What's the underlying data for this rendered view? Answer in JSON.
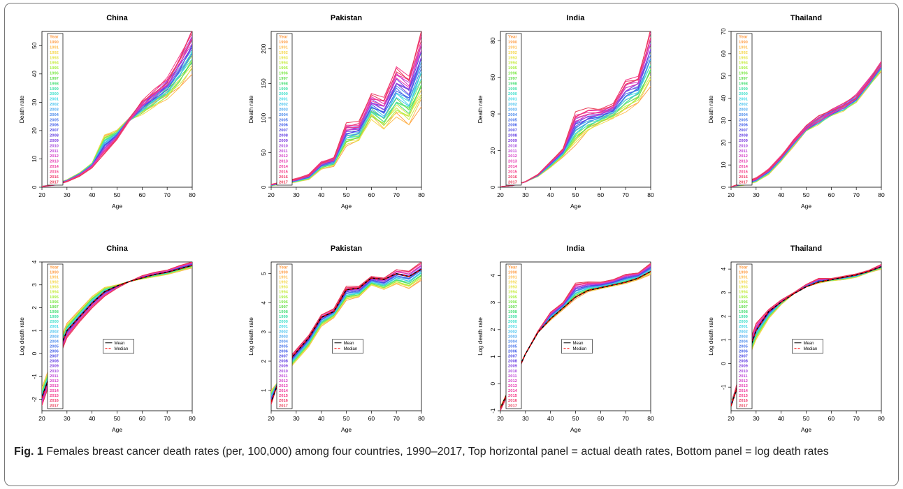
{
  "figure": {
    "label": "Fig. 1",
    "caption": "Females breast cancer death rates (per, 100,000) among four countries, 1990–2017, Top horizontal panel = actual death rates, Bottom panel = log death rates",
    "legend_title": "Year",
    "years": [
      "1990",
      "1991",
      "1992",
      "1993",
      "1994",
      "1995",
      "1996",
      "1997",
      "1998",
      "1999",
      "2000",
      "2001",
      "2002",
      "2003",
      "2004",
      "2005",
      "2006",
      "2007",
      "2008",
      "2009",
      "2010",
      "2011",
      "2012",
      "2013",
      "2014",
      "2015",
      "2016",
      "2017"
    ],
    "year_colors": [
      "#ff9f4a",
      "#ffbf55",
      "#f6d84f",
      "#e5e64a",
      "#c9ec45",
      "#a6ef40",
      "#7fe94a",
      "#5fdc4a",
      "#4ee07a",
      "#45e0a8",
      "#40e0cc",
      "#3fd8e6",
      "#43c2ee",
      "#4aa8ef",
      "#4d8cec",
      "#4673ea",
      "#3f5ae8",
      "#4a45e4",
      "#6440e2",
      "#8040e0",
      "#a040dc",
      "#be3ed6",
      "#d63cc6",
      "#e63ab2",
      "#ef3aa0",
      "#f53a88",
      "#f03a6c",
      "#e83a55"
    ],
    "mean_median_legend": [
      {
        "label": "Mean",
        "color": "#000000",
        "dash": "solid"
      },
      {
        "label": "Median",
        "color": "#ff0000",
        "dash": "dashed"
      }
    ]
  },
  "chart_data": [
    {
      "type": "line",
      "title": "China",
      "xlabel": "Age",
      "ylabel": "Death rate",
      "xlim": [
        20,
        80
      ],
      "ylim": [
        0,
        55
      ],
      "xticks": [
        20,
        30,
        40,
        50,
        60,
        70,
        80
      ],
      "yticks": [
        0,
        10,
        20,
        30,
        40,
        50
      ],
      "x": [
        20,
        25,
        30,
        35,
        40,
        45,
        50,
        55,
        60,
        65,
        70,
        75,
        80
      ],
      "first_year": [
        0.3,
        1,
        2.5,
        5,
        8.5,
        18.5,
        20,
        24,
        26,
        29,
        32,
        36,
        42
      ],
      "last_year": [
        0.2,
        0.8,
        2,
        4,
        7,
        12,
        17,
        24,
        30,
        34,
        38,
        46,
        55
      ],
      "spread": [
        0.2,
        0.3,
        0.5,
        0.6,
        0.8,
        1.2,
        1.2,
        1.6,
        2.2,
        3,
        3.5,
        4,
        6
      ]
    },
    {
      "type": "line",
      "title": "Pakistan",
      "xlabel": "Age",
      "ylabel": "Death rate",
      "xlim": [
        20,
        80
      ],
      "ylim": [
        0,
        225
      ],
      "xticks": [
        20,
        30,
        40,
        50,
        60,
        70,
        80
      ],
      "yticks": [
        0,
        50,
        100,
        150,
        200
      ],
      "x": [
        20,
        25,
        30,
        35,
        40,
        45,
        50,
        55,
        60,
        65,
        70,
        75,
        80
      ],
      "first_year": [
        2,
        5,
        8,
        12,
        27,
        32,
        62,
        68,
        100,
        85,
        105,
        93,
        125
      ],
      "last_year": [
        4,
        8,
        12,
        18,
        36,
        42,
        90,
        92,
        132,
        127,
        173,
        160,
        225
      ],
      "spread": [
        1,
        2,
        3,
        4,
        5,
        6,
        10,
        10,
        14,
        14,
        18,
        18,
        25
      ]
    },
    {
      "type": "line",
      "title": "India",
      "xlabel": "Age",
      "ylabel": "Death rate",
      "xlim": [
        20,
        80
      ],
      "ylim": [
        0,
        85
      ],
      "xticks": [
        20,
        30,
        40,
        50,
        60,
        70,
        80
      ],
      "yticks": [
        0,
        20,
        40,
        60,
        80
      ],
      "x": [
        20,
        25,
        30,
        35,
        40,
        45,
        50,
        55,
        60,
        65,
        70,
        75,
        80
      ],
      "first_year": [
        0.3,
        1,
        3,
        6,
        11,
        17,
        24,
        31,
        35,
        38,
        42,
        47,
        58
      ],
      "last_year": [
        0.3,
        1,
        3,
        7,
        14,
        21,
        40,
        42,
        42,
        45,
        58,
        60,
        86
      ],
      "spread": [
        0.1,
        0.2,
        0.4,
        0.6,
        1,
        1.4,
        4,
        4,
        3,
        3,
        5,
        5,
        9
      ]
    },
    {
      "type": "line",
      "title": "Thailand",
      "xlabel": "Age",
      "ylabel": "Death rate",
      "xlim": [
        20,
        80
      ],
      "ylim": [
        0,
        70
      ],
      "xticks": [
        20,
        30,
        40,
        50,
        60,
        70,
        80
      ],
      "yticks": [
        0,
        10,
        20,
        30,
        40,
        50,
        60,
        70
      ],
      "x": [
        20,
        25,
        30,
        35,
        40,
        45,
        50,
        55,
        60,
        65,
        70,
        75,
        80
      ],
      "first_year": [
        0.2,
        1,
        2.5,
        6,
        12,
        19,
        26,
        29,
        33,
        35,
        39,
        46,
        53
      ],
      "last_year": [
        0.2,
        2,
        4,
        8,
        14,
        21,
        27,
        31,
        34,
        37,
        41,
        48,
        56
      ],
      "spread": [
        0.1,
        0.6,
        1,
        1.2,
        1.4,
        2,
        2.5,
        3.5,
        3,
        3,
        3,
        3,
        3
      ]
    },
    {
      "type": "line",
      "title": "China",
      "xlabel": "Age",
      "ylabel": "Log death rate",
      "xlim": [
        20,
        80
      ],
      "ylim": [
        -2.5,
        4
      ],
      "xticks": [
        20,
        30,
        40,
        50,
        60,
        70,
        80
      ],
      "yticks": [
        -2,
        -1,
        0,
        1,
        2,
        3,
        4
      ],
      "legend": [
        "Mean",
        "Median"
      ],
      "x": [
        20,
        25,
        30,
        35,
        40,
        45,
        50,
        55,
        60,
        65,
        70,
        75,
        80
      ],
      "mean": [
        -1.9,
        -0.4,
        1.0,
        1.6,
        2.2,
        2.7,
        2.95,
        3.15,
        3.3,
        3.45,
        3.55,
        3.7,
        3.85
      ],
      "median": [
        -1.95,
        -0.45,
        1.0,
        1.6,
        2.2,
        2.7,
        2.95,
        3.15,
        3.3,
        3.45,
        3.55,
        3.7,
        3.85
      ],
      "first_year": [
        -1.5,
        0,
        1.3,
        1.9,
        2.5,
        2.9,
        3.0,
        3.15,
        3.25,
        3.35,
        3.45,
        3.6,
        3.75
      ],
      "last_year": [
        -2.3,
        -0.7,
        0.7,
        1.4,
        2.0,
        2.5,
        2.85,
        3.15,
        3.4,
        3.55,
        3.65,
        3.85,
        4.0
      ]
    },
    {
      "type": "line",
      "title": "Pakistan",
      "xlabel": "Age",
      "ylabel": "Log death rate",
      "xlim": [
        20,
        80
      ],
      "ylim": [
        0.3,
        5.4
      ],
      "xticks": [
        20,
        30,
        40,
        50,
        60,
        70,
        80
      ],
      "yticks": [
        1,
        2,
        3,
        4,
        5
      ],
      "legend": [
        "Mean",
        "Median"
      ],
      "x": [
        20,
        25,
        30,
        35,
        40,
        45,
        50,
        55,
        60,
        65,
        70,
        75,
        80
      ],
      "mean": [
        0.6,
        1.8,
        2.3,
        2.8,
        3.5,
        3.7,
        4.45,
        4.5,
        4.85,
        4.8,
        5.0,
        4.9,
        5.15
      ],
      "median": [
        0.6,
        1.8,
        2.3,
        2.8,
        3.5,
        3.7,
        4.45,
        4.5,
        4.85,
        4.8,
        5.0,
        4.9,
        5.15
      ],
      "first_year": [
        1.0,
        1.5,
        2.0,
        2.5,
        3.2,
        3.5,
        4.1,
        4.2,
        4.6,
        4.45,
        4.65,
        4.5,
        4.8
      ],
      "last_year": [
        0.5,
        1.9,
        2.4,
        2.9,
        3.6,
        3.8,
        4.55,
        4.55,
        4.9,
        4.85,
        5.15,
        5.1,
        5.4
      ]
    },
    {
      "type": "line",
      "title": "India",
      "xlabel": "Age",
      "ylabel": "Log death rate",
      "xlim": [
        20,
        80
      ],
      "ylim": [
        -1,
        4.5
      ],
      "xticks": [
        20,
        30,
        40,
        50,
        60,
        70,
        80
      ],
      "yticks": [
        -1,
        0,
        1,
        2,
        3,
        4
      ],
      "legend": [
        "Mean",
        "Median"
      ],
      "x": [
        20,
        25,
        30,
        35,
        40,
        45,
        50,
        55,
        60,
        65,
        70,
        75,
        80
      ],
      "mean": [
        -0.9,
        0.1,
        1.1,
        1.9,
        2.4,
        2.8,
        3.2,
        3.45,
        3.55,
        3.65,
        3.75,
        3.9,
        4.15
      ],
      "median": [
        -0.9,
        0.1,
        1.1,
        1.9,
        2.4,
        2.8,
        3.2,
        3.45,
        3.55,
        3.65,
        3.75,
        3.9,
        4.15
      ],
      "first_year": [
        -0.85,
        0.1,
        1.1,
        1.9,
        2.35,
        2.75,
        3.15,
        3.4,
        3.5,
        3.6,
        3.7,
        3.85,
        4.05
      ],
      "last_year": [
        -1.0,
        0.0,
        1.1,
        1.95,
        2.65,
        3.0,
        3.7,
        3.75,
        3.75,
        3.85,
        4.05,
        4.1,
        4.45
      ]
    },
    {
      "type": "line",
      "title": "Thailand",
      "xlabel": "Age",
      "ylabel": "Log death rate",
      "xlim": [
        20,
        80
      ],
      "ylim": [
        -2,
        4.3
      ],
      "xticks": [
        20,
        30,
        40,
        50,
        60,
        70,
        80
      ],
      "yticks": [
        -1,
        0,
        1,
        2,
        3,
        4
      ],
      "legend": [
        "Mean",
        "Median"
      ],
      "x": [
        20,
        25,
        30,
        35,
        40,
        45,
        50,
        55,
        60,
        65,
        70,
        75,
        80
      ],
      "mean": [
        -1.8,
        -0.2,
        1.4,
        2.2,
        2.6,
        2.95,
        3.25,
        3.45,
        3.55,
        3.65,
        3.75,
        3.9,
        4.1
      ],
      "median": [
        -1.8,
        -0.2,
        1.4,
        2.2,
        2.6,
        2.95,
        3.25,
        3.45,
        3.55,
        3.65,
        3.75,
        3.9,
        4.1
      ],
      "first_year": [
        -1.6,
        -0.3,
        1.0,
        1.9,
        2.5,
        2.95,
        3.25,
        3.4,
        3.5,
        3.55,
        3.65,
        3.85,
        4.0
      ],
      "last_year": [
        -1.8,
        0.2,
        1.7,
        2.3,
        2.7,
        3.0,
        3.35,
        3.6,
        3.6,
        3.7,
        3.8,
        3.95,
        4.2
      ]
    }
  ]
}
